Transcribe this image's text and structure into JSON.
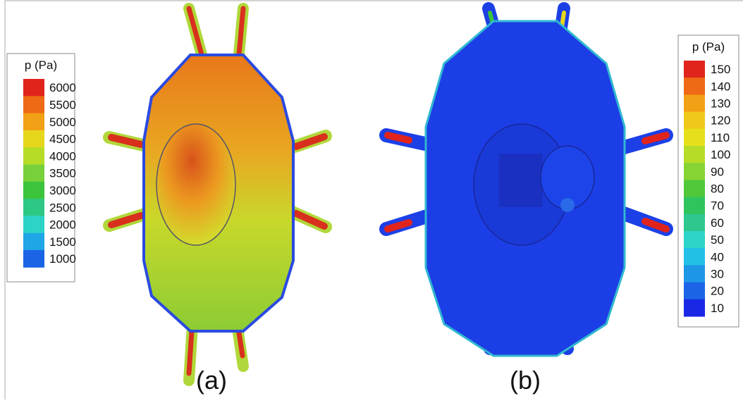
{
  "panels": [
    {
      "label": "(a)",
      "legend": {
        "title": "p (Pa)",
        "levels": [
          6000,
          5500,
          5000,
          4500,
          4000,
          3500,
          3000,
          2500,
          2000,
          1500,
          1000
        ],
        "colors": [
          "#e0241c",
          "#ee6a14",
          "#f2a016",
          "#e6d61c",
          "#b6dc28",
          "#78d03a",
          "#3cc43c",
          "#2ec886",
          "#2cd4c8",
          "#1ea6e6",
          "#1c64e6"
        ]
      }
    },
    {
      "label": "(b)",
      "legend": {
        "title": "p (Pa)",
        "levels": [
          150,
          140,
          130,
          120,
          110,
          100,
          90,
          80,
          70,
          60,
          50,
          40,
          30,
          20,
          10
        ],
        "colors": [
          "#e0241c",
          "#ee6a14",
          "#f2a016",
          "#f0c81a",
          "#e6e01c",
          "#b6dc28",
          "#86d434",
          "#50c83a",
          "#30c45c",
          "#2ec88e",
          "#2cd4c8",
          "#22c0e6",
          "#1e96e6",
          "#1c64e6",
          "#1a28e6"
        ]
      }
    }
  ]
}
